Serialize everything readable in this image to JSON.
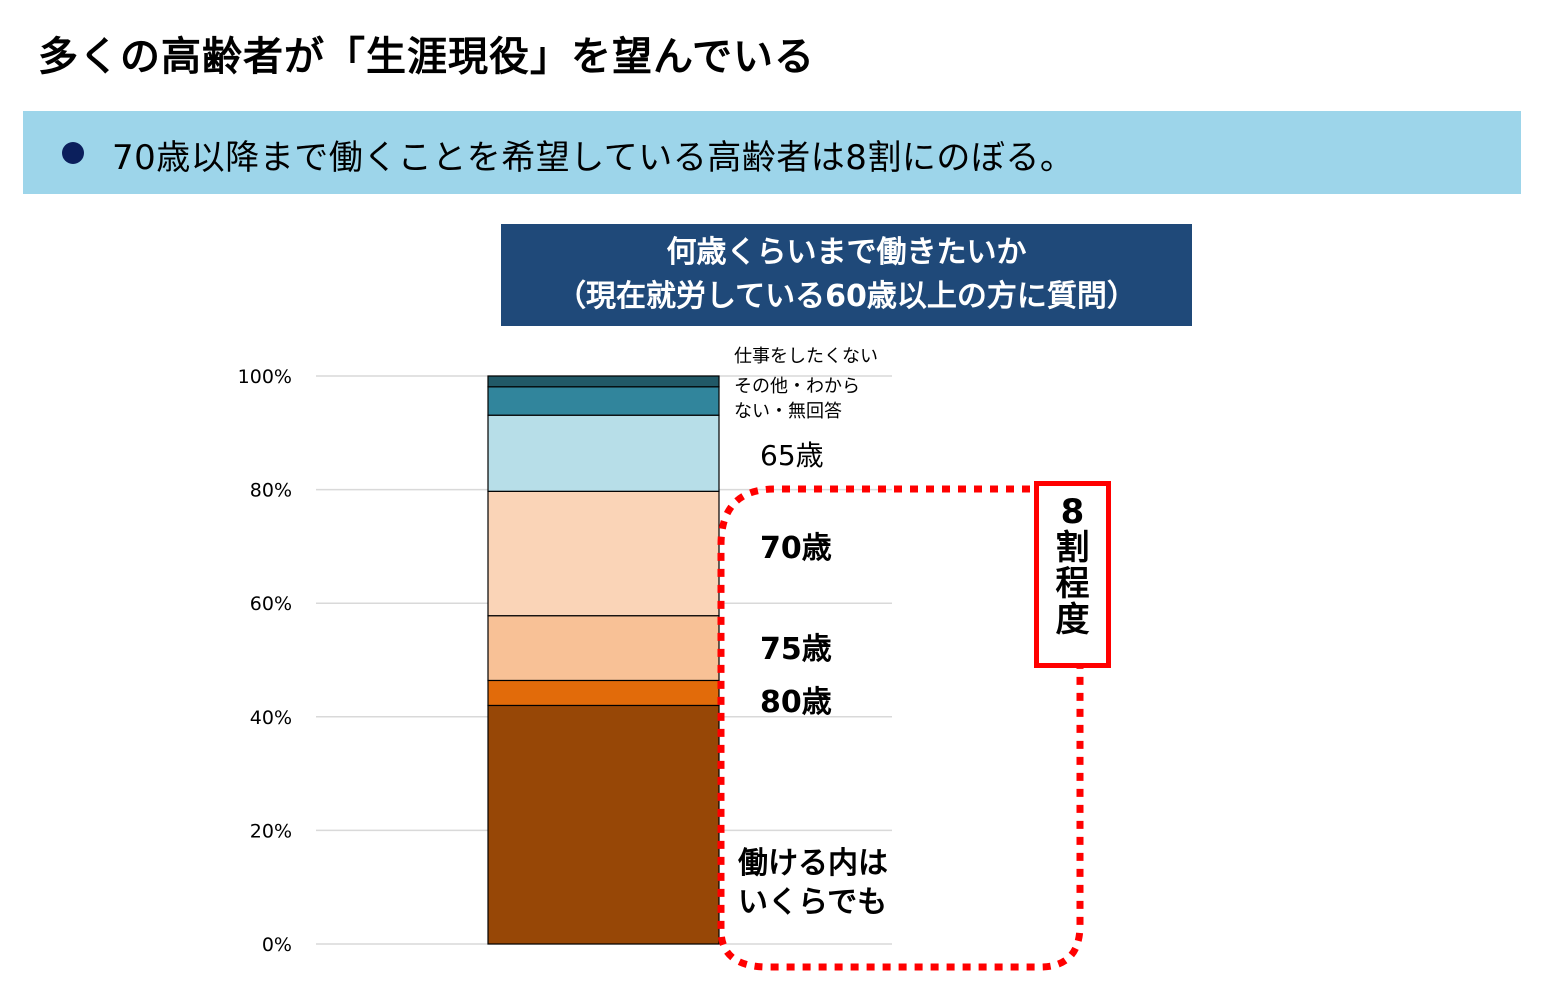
{
  "page": {
    "title": "多くの高齢者が「生涯現役」を望んでいる",
    "banner_text": "70歳以降まで働くことを希望している高齢者は8割にのぼる。"
  },
  "colors": {
    "banner_bg": "#9dd5ea",
    "title_box_bg": "#1f4979",
    "bullet": "#0b1f5c",
    "callout": "#ff0000"
  },
  "chart_data": {
    "type": "bar",
    "stacked": true,
    "title_line1": "何歳くらいまで働きたいか",
    "title_line2": "（現在就労している60歳以上の方に質問）",
    "ylim": [
      0,
      100
    ],
    "yticks": [
      "0%",
      "20%",
      "40%",
      "60%",
      "80%",
      "100%"
    ],
    "ytick_values": [
      0,
      20,
      40,
      60,
      80,
      100
    ],
    "grid": true,
    "series": [
      {
        "name": "働ける内はいくらでも",
        "value": 42.0,
        "color": "#974706"
      },
      {
        "name": "80歳",
        "value": 4.4,
        "color": "#e26b0a"
      },
      {
        "name": "75歳",
        "value": 11.4,
        "color": "#f8c196"
      },
      {
        "name": "70歳",
        "value": 21.9,
        "color": "#fad4b7"
      },
      {
        "name": "65歳",
        "value": 13.4,
        "color": "#b7dee8"
      },
      {
        "name": "その他・わからない・無回答",
        "value": 5.0,
        "color": "#31859c"
      },
      {
        "name": "仕事をしたくない",
        "value": 1.9,
        "color": "#215967"
      }
    ],
    "labels": {
      "no_work": "仕事をしたくない",
      "other_line1": "その他・わから",
      "other_line2": "ない・無回答",
      "age65": "65歳",
      "age70": "70歳",
      "age75": "75歳",
      "age80": "80歳",
      "any_line1": "働ける内は",
      "any_line2": "いくらでも"
    },
    "annotation": {
      "line1": "8",
      "line2": "割",
      "line3": "程",
      "line4": "度"
    }
  }
}
